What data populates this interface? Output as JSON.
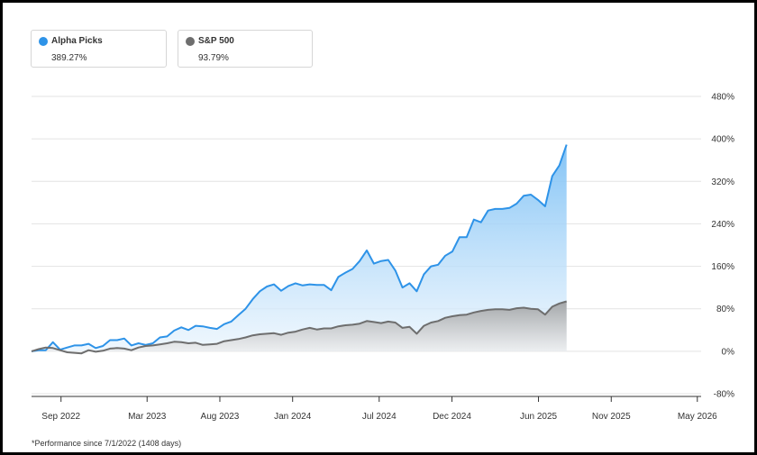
{
  "legend": [
    {
      "name": "Alpha Picks",
      "value": "389.27%",
      "color": "#2e93e8"
    },
    {
      "name": "S&P 500",
      "value": "93.79%",
      "color": "#6e6e6e"
    }
  ],
  "footnote": "*Performance since 7/1/2022 (1408 days)",
  "chart_data": {
    "type": "area",
    "x_unit": "days since start",
    "ylim": [
      -80,
      480
    ],
    "y_ticks": [
      480,
      400,
      320,
      240,
      160,
      80,
      0,
      -80
    ],
    "y_tick_labels": [
      "480%",
      "400%",
      "320%",
      "240%",
      "160%",
      "80%",
      "0%",
      "-80%"
    ],
    "grid": true,
    "x_ticks": [
      {
        "label": "Sep 2022",
        "day": 62
      },
      {
        "label": "Mar 2023",
        "day": 243
      },
      {
        "label": "Aug 2023",
        "day": 396
      },
      {
        "label": "Jan 2024",
        "day": 549
      },
      {
        "label": "Jul 2024",
        "day": 731
      },
      {
        "label": "Dec 2024",
        "day": 884
      },
      {
        "label": "Jun 2025",
        "day": 1066
      },
      {
        "label": "Nov 2025",
        "day": 1219
      },
      {
        "label": "May 2026",
        "day": 1400
      }
    ],
    "series": [
      {
        "name": "Alpha Picks",
        "color": "#2e93e8",
        "points": [
          [
            0,
            0
          ],
          [
            15,
            2
          ],
          [
            30,
            2
          ],
          [
            45,
            17
          ],
          [
            60,
            3
          ],
          [
            75,
            7
          ],
          [
            90,
            11
          ],
          [
            105,
            11
          ],
          [
            120,
            14
          ],
          [
            135,
            6
          ],
          [
            150,
            10
          ],
          [
            165,
            21
          ],
          [
            180,
            21
          ],
          [
            195,
            24
          ],
          [
            210,
            11
          ],
          [
            225,
            15
          ],
          [
            240,
            12
          ],
          [
            255,
            15
          ],
          [
            270,
            26
          ],
          [
            285,
            28
          ],
          [
            300,
            39
          ],
          [
            315,
            45
          ],
          [
            330,
            40
          ],
          [
            345,
            48
          ],
          [
            360,
            47
          ],
          [
            375,
            44
          ],
          [
            390,
            42
          ],
          [
            405,
            51
          ],
          [
            420,
            56
          ],
          [
            435,
            68
          ],
          [
            450,
            80
          ],
          [
            465,
            98
          ],
          [
            480,
            113
          ],
          [
            495,
            122
          ],
          [
            510,
            126
          ],
          [
            525,
            114
          ],
          [
            540,
            123
          ],
          [
            555,
            128
          ],
          [
            570,
            124
          ],
          [
            585,
            126
          ],
          [
            600,
            125
          ],
          [
            615,
            125
          ],
          [
            630,
            115
          ],
          [
            645,
            140
          ],
          [
            660,
            148
          ],
          [
            675,
            155
          ],
          [
            690,
            170
          ],
          [
            705,
            190
          ],
          [
            720,
            165
          ],
          [
            735,
            170
          ],
          [
            750,
            172
          ],
          [
            765,
            152
          ],
          [
            780,
            120
          ],
          [
            795,
            128
          ],
          [
            810,
            113
          ],
          [
            825,
            145
          ],
          [
            840,
            160
          ],
          [
            855,
            163
          ],
          [
            870,
            180
          ],
          [
            885,
            188
          ],
          [
            900,
            215
          ],
          [
            915,
            215
          ],
          [
            930,
            248
          ],
          [
            945,
            243
          ],
          [
            960,
            265
          ],
          [
            975,
            268
          ],
          [
            990,
            268
          ],
          [
            1005,
            270
          ],
          [
            1020,
            278
          ],
          [
            1035,
            293
          ],
          [
            1050,
            295
          ],
          [
            1065,
            285
          ],
          [
            1080,
            273
          ],
          [
            1095,
            330
          ],
          [
            1110,
            350
          ],
          [
            1125,
            389
          ]
        ]
      },
      {
        "name": "S&P 500",
        "color": "#6e6e6e",
        "points": [
          [
            0,
            0
          ],
          [
            15,
            4
          ],
          [
            30,
            7
          ],
          [
            45,
            6
          ],
          [
            60,
            2
          ],
          [
            75,
            -2
          ],
          [
            90,
            -3
          ],
          [
            105,
            -4
          ],
          [
            120,
            2
          ],
          [
            135,
            -1
          ],
          [
            150,
            1
          ],
          [
            165,
            5
          ],
          [
            180,
            6
          ],
          [
            195,
            5
          ],
          [
            210,
            2
          ],
          [
            225,
            7
          ],
          [
            240,
            10
          ],
          [
            255,
            11
          ],
          [
            270,
            13
          ],
          [
            285,
            15
          ],
          [
            300,
            18
          ],
          [
            315,
            17
          ],
          [
            330,
            15
          ],
          [
            345,
            16
          ],
          [
            360,
            12
          ],
          [
            375,
            13
          ],
          [
            390,
            14
          ],
          [
            405,
            19
          ],
          [
            420,
            21
          ],
          [
            435,
            23
          ],
          [
            450,
            26
          ],
          [
            465,
            30
          ],
          [
            480,
            32
          ],
          [
            495,
            33
          ],
          [
            510,
            34
          ],
          [
            525,
            31
          ],
          [
            540,
            35
          ],
          [
            555,
            37
          ],
          [
            570,
            41
          ],
          [
            585,
            44
          ],
          [
            600,
            41
          ],
          [
            615,
            43
          ],
          [
            630,
            43
          ],
          [
            645,
            47
          ],
          [
            660,
            49
          ],
          [
            675,
            50
          ],
          [
            690,
            52
          ],
          [
            705,
            57
          ],
          [
            720,
            55
          ],
          [
            735,
            53
          ],
          [
            750,
            56
          ],
          [
            765,
            54
          ],
          [
            780,
            44
          ],
          [
            795,
            46
          ],
          [
            810,
            33
          ],
          [
            825,
            48
          ],
          [
            840,
            54
          ],
          [
            855,
            57
          ],
          [
            870,
            63
          ],
          [
            885,
            66
          ],
          [
            900,
            68
          ],
          [
            915,
            69
          ],
          [
            930,
            73
          ],
          [
            945,
            76
          ],
          [
            960,
            78
          ],
          [
            975,
            79
          ],
          [
            990,
            79
          ],
          [
            1005,
            78
          ],
          [
            1020,
            81
          ],
          [
            1035,
            82
          ],
          [
            1050,
            80
          ],
          [
            1065,
            79
          ],
          [
            1080,
            69
          ],
          [
            1095,
            84
          ],
          [
            1110,
            90
          ],
          [
            1125,
            94
          ]
        ]
      }
    ]
  }
}
